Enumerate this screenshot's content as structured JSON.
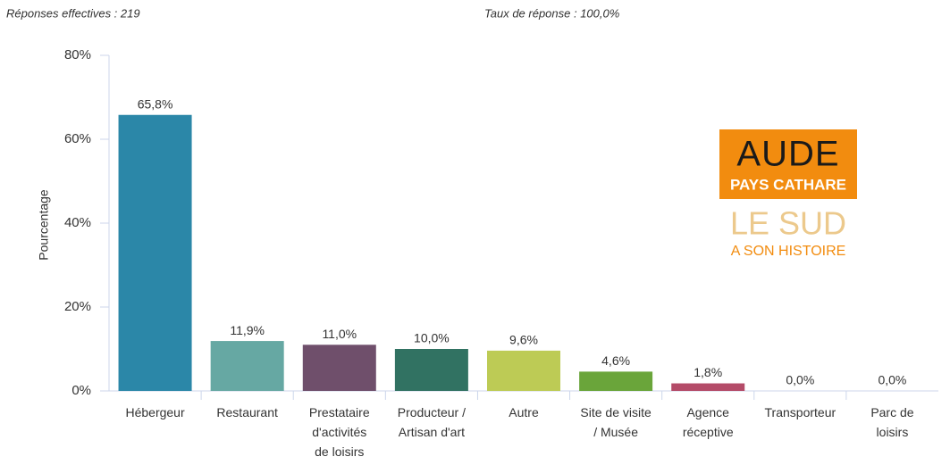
{
  "header": {
    "responses": "Réponses effectives : 219",
    "rate": "Taux de réponse : 100,0%"
  },
  "logo": {
    "name": "AUDE",
    "subtitle": "PAYS CATHARE",
    "slogan_1": "LE SUD",
    "slogan_2": "A SON HISTOIRE"
  },
  "chart_data": {
    "type": "bar",
    "ylabel": "Pourcentage",
    "categories": [
      "Hébergeur",
      "Restaurant",
      "Prestataire d'activités de loisirs",
      "Producteur / Artisan d'art",
      "Autre",
      "Site de visite / Musée",
      "Agence réceptive",
      "Transporteur",
      "Parc de loisirs"
    ],
    "values": [
      65.8,
      11.9,
      11.0,
      10.0,
      9.6,
      4.6,
      1.8,
      0.0,
      0.0
    ],
    "value_labels": [
      "65,8%",
      "11,9%",
      "11,0%",
      "10,0%",
      "9,6%",
      "4,6%",
      "1,8%",
      "0,0%",
      "0,0%"
    ],
    "colors": [
      "#2b87a8",
      "#66a8a3",
      "#6f4f6b",
      "#317262",
      "#bdcb55",
      "#6aa53a",
      "#b44b68",
      "#5b7fa6",
      "#c9884e"
    ],
    "ylim": [
      0,
      80
    ],
    "yticks": [
      {
        "value": 0,
        "label": "0%"
      },
      {
        "value": 20,
        "label": "20%"
      },
      {
        "value": 40,
        "label": "40%"
      },
      {
        "value": 60,
        "label": "60%"
      },
      {
        "value": 80,
        "label": "80%"
      }
    ]
  }
}
